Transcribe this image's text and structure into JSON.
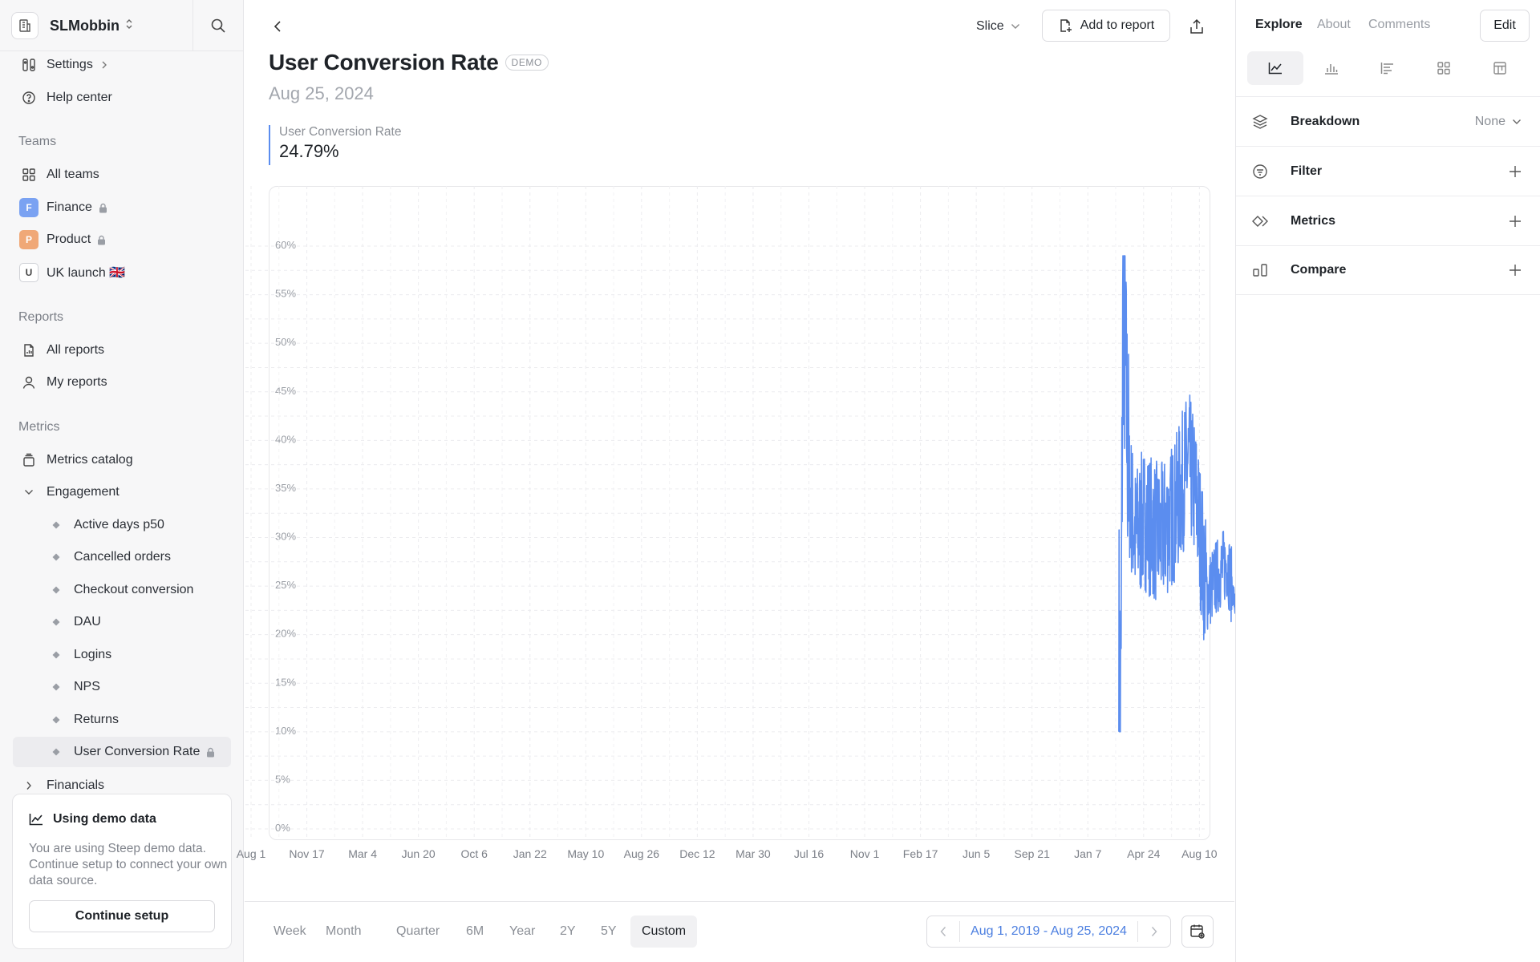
{
  "workspace": {
    "name": "SLMobbin"
  },
  "sidebar": {
    "top_items": [
      {
        "label": "Settings",
        "icon": "settings-icon"
      },
      {
        "label": "Help center",
        "icon": "help-icon"
      }
    ],
    "teams_label": "Teams",
    "teams": [
      {
        "label": "All teams",
        "icon": "grid-icon"
      },
      {
        "label": "Finance",
        "badge": "F",
        "color": "#7aa2f2",
        "locked": true
      },
      {
        "label": "Product",
        "badge": "P",
        "color": "#f0a877",
        "locked": true
      },
      {
        "label": "UK launch 🇬🇧",
        "badge": "U",
        "color": "#ffffff"
      }
    ],
    "reports_label": "Reports",
    "reports": [
      {
        "label": "All reports",
        "icon": "report-icon"
      },
      {
        "label": "My reports",
        "icon": "user-icon"
      }
    ],
    "metrics_label": "Metrics",
    "metrics_catalog": "Metrics catalog",
    "engagement": "Engagement",
    "engagement_items": [
      "Active days p50",
      "Cancelled orders",
      "Checkout conversion",
      "DAU",
      "Logins",
      "NPS",
      "Returns",
      "User Conversion Rate"
    ],
    "financials": "Financials"
  },
  "demo_card": {
    "title": "Using demo data",
    "text": "You are using Steep demo data. Continue setup to connect your own data source.",
    "button": "Continue setup"
  },
  "header": {
    "slice": "Slice",
    "add_to_report": "Add to report",
    "title": "User Conversion Rate",
    "badge": "DEMO",
    "date": "Aug 25, 2024",
    "metric_label": "User Conversion Rate",
    "metric_value": "24.79%"
  },
  "chart_data": {
    "type": "line",
    "series": [
      {
        "name": "User Conversion Rate",
        "color": "#5b8def"
      }
    ],
    "x_ticks": [
      "Aug 1",
      "Nov 17",
      "Mar 4",
      "Jun 20",
      "Oct 6",
      "Jan 22",
      "May 10",
      "Aug 26",
      "Dec 12",
      "Mar 30",
      "Jul 16",
      "Nov 1",
      "Feb 17",
      "Jun 5",
      "Sep 21",
      "Jan 7",
      "Apr 24",
      "Aug 10"
    ],
    "y_ticks": [
      "0%",
      "5%",
      "10%",
      "15%",
      "20%",
      "25%",
      "30%",
      "35%",
      "40%",
      "45%",
      "50%",
      "55%",
      "60%"
    ],
    "ylim": [
      0,
      60
    ],
    "x_range": [
      "Aug 1, 2019",
      "Aug 25, 2024"
    ],
    "x_range_days": 1851,
    "data_start_day": 1680,
    "anchors": [
      [
        1680,
        20.0
      ],
      [
        1684,
        12.0
      ],
      [
        1688,
        55.0
      ],
      [
        1692,
        48.0
      ],
      [
        1700,
        35.0
      ],
      [
        1712,
        30.0
      ],
      [
        1730,
        32.0
      ],
      [
        1760,
        30.0
      ],
      [
        1790,
        33.0
      ],
      [
        1800,
        35.0
      ],
      [
        1815,
        38.0
      ],
      [
        1830,
        34.0
      ],
      [
        1850,
        24.0
      ],
      [
        1870,
        26.0
      ],
      [
        1890,
        27.5
      ],
      [
        1905,
        23.0
      ],
      [
        1920,
        21.5
      ],
      [
        1935,
        22.5
      ],
      [
        1950,
        21.0
      ],
      [
        1970,
        28.0
      ],
      [
        1985,
        26.5
      ],
      [
        2000,
        24.5
      ],
      [
        2010,
        24.79
      ]
    ],
    "x_end_day": 2010,
    "last_value": 24.79,
    "grid": true
  },
  "time_ranges": {
    "options": [
      "Week",
      "Month",
      "Quarter",
      "6M",
      "Year",
      "2Y",
      "5Y",
      "Custom"
    ],
    "selected": "Custom",
    "date_range": "Aug 1, 2019 - Aug 25, 2024"
  },
  "right_panel": {
    "tabs": [
      "Explore",
      "About",
      "Comments"
    ],
    "active_tab": "Explore",
    "edit": "Edit",
    "viz_icons": [
      "line-chart-icon",
      "bar-chart-icon",
      "horizontal-bar-icon",
      "grid-icon",
      "table-icon"
    ],
    "breakdown_label": "Breakdown",
    "breakdown_value": "None",
    "filter_label": "Filter",
    "metrics_label": "Metrics",
    "compare_label": "Compare"
  }
}
